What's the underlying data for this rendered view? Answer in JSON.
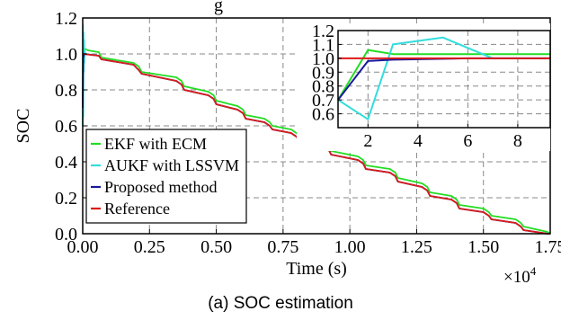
{
  "caption": "(a) SOC estimation",
  "chart_data": [
    {
      "type": "line",
      "title_fragment": "g",
      "xlabel": "Time (s)",
      "ylabel": "SOC",
      "x_multiplier_label": "×10",
      "x_multiplier_exponent": "4",
      "xlim": [
        0,
        1.75
      ],
      "ylim": [
        0,
        1.2
      ],
      "xticks": [
        "0.00",
        "0.25",
        "0.50",
        "0.75",
        "1.00",
        "1.25",
        "1.50",
        "1.75"
      ],
      "yticks": [
        "0.0",
        "0.2",
        "0.4",
        "0.6",
        "0.8",
        "1.0",
        "1.2"
      ],
      "grid": true,
      "legend_position": "bottom-left",
      "colors": {
        "ekf": "#22dd22",
        "aukf": "#33dddd",
        "proposed": "#1a1a9a",
        "reference": "#dd1a1a"
      },
      "series": [
        {
          "name": "EKF with ECM",
          "color_key": "ekf",
          "x": [
            0,
            0.002,
            0.004,
            0.006,
            0.02,
            0.06,
            0.07,
            0.19,
            0.21,
            0.22,
            0.35,
            0.37,
            0.38,
            0.47,
            0.49,
            0.5,
            0.58,
            0.6,
            0.61,
            0.68,
            0.7,
            0.71,
            0.78,
            0.8,
            0.81,
            0.9,
            0.92,
            0.93,
            1.03,
            1.05,
            1.06,
            1.15,
            1.17,
            1.18,
            1.27,
            1.29,
            1.3,
            1.38,
            1.4,
            1.41,
            1.5,
            1.52,
            1.53,
            1.62,
            1.64,
            1.65,
            1.74,
            1.75
          ],
          "y": [
            0.7,
            1.06,
            1.03,
            1.03,
            1.02,
            1.01,
            0.98,
            0.95,
            0.93,
            0.9,
            0.87,
            0.85,
            0.82,
            0.79,
            0.77,
            0.74,
            0.71,
            0.69,
            0.66,
            0.64,
            0.62,
            0.6,
            0.58,
            0.56,
            0.54,
            0.51,
            0.49,
            0.46,
            0.43,
            0.41,
            0.38,
            0.36,
            0.34,
            0.31,
            0.28,
            0.26,
            0.23,
            0.21,
            0.19,
            0.16,
            0.14,
            0.12,
            0.1,
            0.08,
            0.06,
            0.04,
            0.01,
            0.0
          ]
        },
        {
          "name": "AUKF with LSSVM",
          "color_key": "aukf",
          "x": [
            0,
            0.001,
            0.002,
            0.003,
            0.004,
            0.005,
            0.006,
            0.007,
            0.01,
            0.06,
            0.07,
            0.19,
            0.21,
            0.22,
            0.35,
            0.37,
            0.38,
            0.47,
            0.49,
            0.5,
            0.58,
            0.6,
            0.61,
            0.68,
            0.7,
            0.71,
            0.78,
            0.8,
            0.81,
            0.9,
            0.92,
            0.93,
            1.03,
            1.05,
            1.06,
            1.15,
            1.17,
            1.18,
            1.27,
            1.29,
            1.3,
            1.38,
            1.4,
            1.41,
            1.5,
            1.52,
            1.53,
            1.62,
            1.64,
            1.65,
            1.74,
            1.75
          ],
          "y": [
            0.6,
            1.16,
            0.65,
            1.12,
            0.9,
            1.08,
            0.95,
            1.02,
            1.0,
            0.99,
            0.97,
            0.94,
            0.91,
            0.89,
            0.85,
            0.83,
            0.8,
            0.77,
            0.75,
            0.72,
            0.69,
            0.67,
            0.64,
            0.62,
            0.6,
            0.58,
            0.56,
            0.54,
            0.52,
            0.49,
            0.47,
            0.44,
            0.41,
            0.39,
            0.36,
            0.34,
            0.32,
            0.29,
            0.26,
            0.24,
            0.21,
            0.19,
            0.17,
            0.14,
            0.12,
            0.1,
            0.08,
            0.06,
            0.04,
            0.02,
            0.0,
            0.0
          ]
        },
        {
          "name": "Proposed method",
          "color_key": "proposed",
          "x": [
            0,
            0.002,
            0.004,
            0.006,
            0.06,
            0.07,
            0.19,
            0.21,
            0.22,
            0.35,
            0.37,
            0.38,
            0.47,
            0.49,
            0.5,
            0.58,
            0.6,
            0.61,
            0.68,
            0.7,
            0.71,
            0.78,
            0.8,
            0.81,
            0.9,
            0.92,
            0.93,
            1.03,
            1.05,
            1.06,
            1.15,
            1.17,
            1.18,
            1.27,
            1.29,
            1.3,
            1.38,
            1.4,
            1.41,
            1.5,
            1.52,
            1.53,
            1.62,
            1.64,
            1.65,
            1.74,
            1.75
          ],
          "y": [
            0.7,
            0.98,
            0.99,
            1.0,
            0.99,
            0.97,
            0.94,
            0.91,
            0.89,
            0.85,
            0.83,
            0.8,
            0.77,
            0.75,
            0.72,
            0.69,
            0.67,
            0.64,
            0.62,
            0.6,
            0.58,
            0.56,
            0.54,
            0.52,
            0.49,
            0.47,
            0.44,
            0.41,
            0.39,
            0.36,
            0.34,
            0.32,
            0.29,
            0.26,
            0.24,
            0.21,
            0.19,
            0.17,
            0.14,
            0.12,
            0.1,
            0.08,
            0.06,
            0.04,
            0.02,
            0.0,
            0.0
          ]
        },
        {
          "name": "Reference",
          "color_key": "reference",
          "x": [
            0,
            0.06,
            0.07,
            0.19,
            0.21,
            0.22,
            0.35,
            0.37,
            0.38,
            0.47,
            0.49,
            0.5,
            0.58,
            0.6,
            0.61,
            0.68,
            0.7,
            0.71,
            0.78,
            0.8,
            0.81,
            0.9,
            0.92,
            0.93,
            1.03,
            1.05,
            1.06,
            1.15,
            1.17,
            1.18,
            1.27,
            1.29,
            1.3,
            1.38,
            1.4,
            1.41,
            1.5,
            1.52,
            1.53,
            1.62,
            1.64,
            1.65,
            1.74,
            1.75
          ],
          "y": [
            1.0,
            0.99,
            0.97,
            0.94,
            0.91,
            0.89,
            0.85,
            0.83,
            0.8,
            0.77,
            0.75,
            0.72,
            0.69,
            0.67,
            0.64,
            0.62,
            0.6,
            0.58,
            0.56,
            0.54,
            0.52,
            0.49,
            0.47,
            0.44,
            0.41,
            0.39,
            0.36,
            0.34,
            0.32,
            0.29,
            0.26,
            0.24,
            0.21,
            0.19,
            0.17,
            0.14,
            0.12,
            0.1,
            0.08,
            0.06,
            0.04,
            0.02,
            0.0,
            0.0
          ]
        }
      ]
    },
    {
      "type": "line",
      "role": "inset",
      "xlim": [
        0.8,
        9.3
      ],
      "ylim": [
        0.5,
        1.2
      ],
      "xticks": [
        "2",
        "4",
        "6",
        "8"
      ],
      "yticks": [
        "0.6",
        "0.7",
        "0.8",
        "0.9",
        "1.0",
        "1.1",
        "1.2"
      ],
      "grid": true,
      "series": [
        {
          "color_key": "ekf",
          "x": [
            0.8,
            2.0,
            3.0,
            9.3
          ],
          "y": [
            0.7,
            1.06,
            1.03,
            1.03
          ]
        },
        {
          "color_key": "aukf",
          "x": [
            0.8,
            2.0,
            3.0,
            5.0,
            7.0,
            9.3
          ],
          "y": [
            0.7,
            0.56,
            1.1,
            1.15,
            1.0,
            1.0
          ]
        },
        {
          "color_key": "proposed",
          "x": [
            0.8,
            2.0,
            3.0,
            6.0,
            9.3
          ],
          "y": [
            0.7,
            0.98,
            0.99,
            1.0,
            1.0
          ]
        },
        {
          "color_key": "reference",
          "x": [
            0.8,
            9.3
          ],
          "y": [
            1.0,
            1.0
          ]
        }
      ]
    }
  ]
}
